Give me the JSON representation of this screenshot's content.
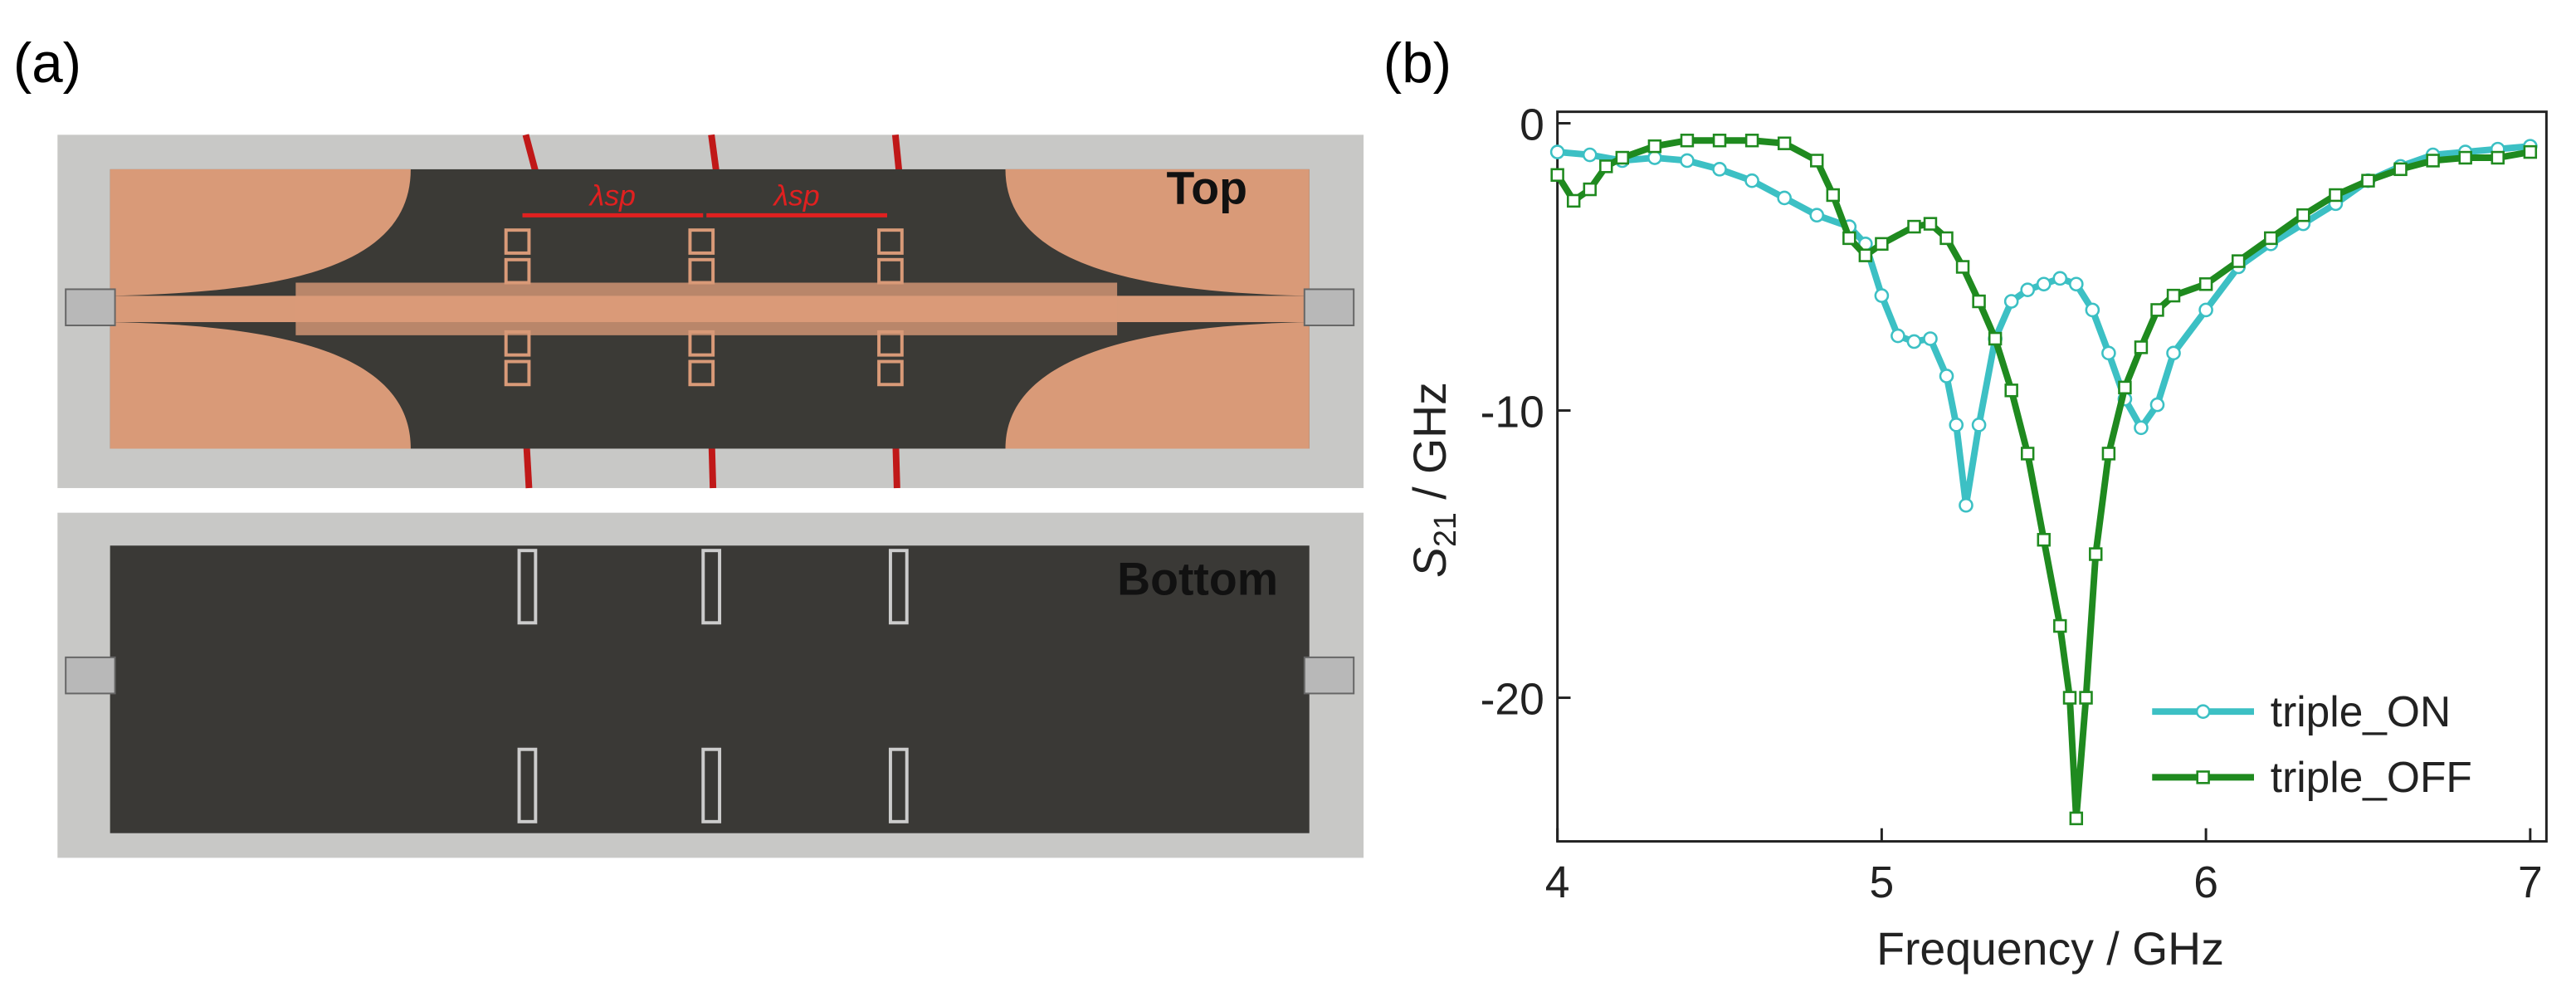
{
  "panel_labels": [
    "(a)",
    "(b)"
  ],
  "photo": {
    "top_label": "Top",
    "bottom_label": "Bottom",
    "spacing_labels": [
      "λsp",
      "λsp"
    ]
  },
  "chart_data": {
    "type": "line",
    "xlabel": "Frequency / GHz",
    "ylabel_symbol": "S",
    "ylabel_subscript": "21",
    "ylabel_rest": " / GHz",
    "xlim": [
      4,
      7.05
    ],
    "ylim": [
      -25,
      0.4
    ],
    "xticks": [
      4,
      5,
      6,
      7
    ],
    "yticks": [
      0,
      -10,
      -20
    ],
    "legend": "lower right",
    "series": [
      {
        "name": "triple_ON",
        "color": "#3cc0c4",
        "marker": "circle",
        "x": [
          4,
          4.1,
          4.2,
          4.3,
          4.4,
          4.5,
          4.6,
          4.7,
          4.8,
          4.9,
          4.95,
          5.0,
          5.05,
          5.1,
          5.15,
          5.2,
          5.23,
          5.26,
          5.3,
          5.35,
          5.4,
          5.45,
          5.5,
          5.55,
          5.6,
          5.65,
          5.7,
          5.75,
          5.8,
          5.85,
          5.9,
          6.0,
          6.1,
          6.2,
          6.3,
          6.4,
          6.5,
          6.6,
          6.7,
          6.8,
          6.9,
          7.0
        ],
        "values": [
          -1.0,
          -1.1,
          -1.3,
          -1.2,
          -1.3,
          -1.6,
          -2.0,
          -2.6,
          -3.2,
          -3.6,
          -4.2,
          -6.0,
          -7.4,
          -7.6,
          -7.5,
          -8.8,
          -10.5,
          -13.3,
          -10.5,
          -7.5,
          -6.2,
          -5.8,
          -5.6,
          -5.4,
          -5.6,
          -6.5,
          -8.0,
          -9.6,
          -10.6,
          -9.8,
          -8.0,
          -6.5,
          -5.0,
          -4.2,
          -3.5,
          -2.8,
          -2.0,
          -1.5,
          -1.1,
          -1.0,
          -0.9,
          -0.8
        ]
      },
      {
        "name": "triple_OFF",
        "color": "#1f8a1f",
        "marker": "square",
        "x": [
          4,
          4.05,
          4.1,
          4.15,
          4.2,
          4.3,
          4.4,
          4.5,
          4.6,
          4.7,
          4.8,
          4.85,
          4.9,
          4.95,
          5.0,
          5.1,
          5.15,
          5.2,
          5.25,
          5.3,
          5.35,
          5.4,
          5.45,
          5.5,
          5.55,
          5.58,
          5.6,
          5.63,
          5.66,
          5.7,
          5.75,
          5.8,
          5.85,
          5.9,
          6.0,
          6.1,
          6.2,
          6.3,
          6.4,
          6.5,
          6.6,
          6.7,
          6.8,
          6.9,
          7.0
        ],
        "values": [
          -1.8,
          -2.7,
          -2.3,
          -1.5,
          -1.2,
          -0.8,
          -0.6,
          -0.6,
          -0.6,
          -0.7,
          -1.3,
          -2.5,
          -4.0,
          -4.6,
          -4.2,
          -3.6,
          -3.5,
          -4.0,
          -5.0,
          -6.2,
          -7.5,
          -9.3,
          -11.5,
          -14.5,
          -17.5,
          -20,
          -24.2,
          -20,
          -15,
          -11.5,
          -9.2,
          -7.8,
          -6.5,
          -6.0,
          -5.6,
          -4.8,
          -4.0,
          -3.2,
          -2.5,
          -2.0,
          -1.6,
          -1.3,
          -1.2,
          -1.2,
          -1.0
        ]
      }
    ]
  }
}
